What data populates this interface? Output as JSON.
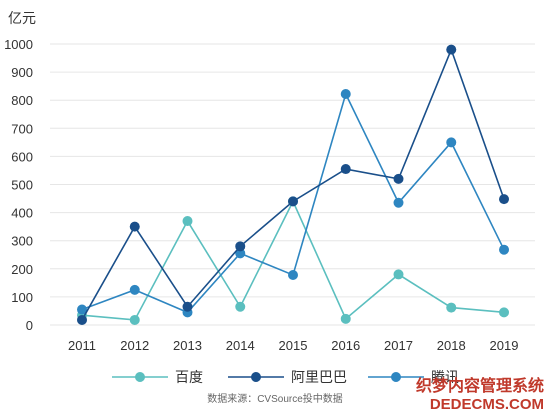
{
  "chart_data": {
    "type": "line",
    "ylabel": "亿元",
    "x": [
      "2011",
      "2012",
      "2013",
      "2014",
      "2015",
      "2016",
      "2017",
      "2018",
      "2019"
    ],
    "ylim": [
      0,
      1000
    ],
    "yticks": [
      "0",
      "100",
      "200",
      "300",
      "400",
      "500",
      "600",
      "700",
      "800",
      "900",
      "1000"
    ],
    "grid": true,
    "legend_position": "bottom",
    "source": "数据来源：CVSource投中数据",
    "series": [
      {
        "name": "百度",
        "color": "#5bbfbf",
        "values": [
          35,
          18,
          370,
          65,
          440,
          22,
          180,
          62,
          45
        ]
      },
      {
        "name": "阿里巴巴",
        "color": "#1a4f8a",
        "values": [
          18,
          350,
          65,
          280,
          440,
          555,
          520,
          980,
          448
        ]
      },
      {
        "name": "腾讯",
        "color": "#2e86c1",
        "values": [
          55,
          125,
          45,
          255,
          178,
          822,
          435,
          650,
          268
        ]
      }
    ]
  },
  "watermark": {
    "line1": "织梦内容管理系统",
    "line2": "DEDECMS.COM"
  }
}
